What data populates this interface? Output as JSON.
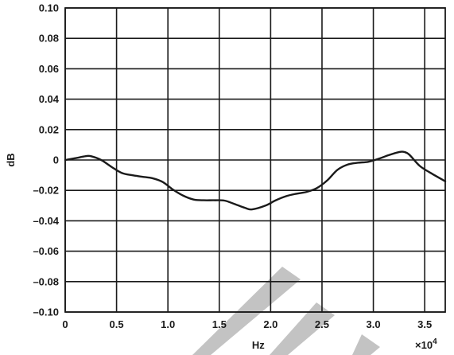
{
  "chart_data": {
    "type": "line",
    "title": "",
    "xlabel": "Hz",
    "ylabel": "dB",
    "x_multiplier_label": "×10",
    "x_multiplier_exponent": "4",
    "xlim": [
      0,
      37000
    ],
    "ylim": [
      -0.1,
      0.1
    ],
    "grid": true,
    "legend": "none",
    "x_ticks": [
      0,
      5000,
      10000,
      15000,
      20000,
      25000,
      30000,
      35000
    ],
    "x_tick_labels": [
      "0",
      "0.5",
      "1.0",
      "1.5",
      "2.0",
      "2.5",
      "3.0",
      "3.5"
    ],
    "y_ticks": [
      0.1,
      0.08,
      0.06,
      0.04,
      0.02,
      0,
      -0.02,
      -0.04,
      -0.06,
      -0.08,
      -0.1
    ],
    "y_tick_labels": [
      "0.10",
      "0.08",
      "0.06",
      "0.04",
      "0.02",
      "0",
      "–0.02",
      "–0.04",
      "–0.06",
      "–0.08",
      "–0.10"
    ],
    "series": [
      {
        "color": "#1a1a1a",
        "x": [
          0,
          1000,
          2000,
          2500,
          3500,
          4500,
          5500,
          6500,
          7500,
          8500,
          9500,
          10500,
          11500,
          12500,
          13500,
          14500,
          15500,
          16500,
          17500,
          18200,
          19500,
          20500,
          21500,
          22500,
          23500,
          24500,
          25500,
          26500,
          27500,
          28500,
          29500,
          30500,
          31500,
          32500,
          33000,
          33500,
          34500,
          35500,
          37000
        ],
        "y": [
          0,
          0.0012,
          0.0025,
          0.0025,
          0,
          -0.0045,
          -0.0085,
          -0.01,
          -0.011,
          -0.012,
          -0.0145,
          -0.0195,
          -0.0235,
          -0.026,
          -0.0265,
          -0.0265,
          -0.0267,
          -0.029,
          -0.0315,
          -0.0325,
          -0.03,
          -0.0265,
          -0.0238,
          -0.0222,
          -0.021,
          -0.0185,
          -0.0135,
          -0.0065,
          -0.003,
          -0.0018,
          -0.0012,
          0.0008,
          0.0032,
          0.0052,
          0.0053,
          0.0035,
          -0.0038,
          -0.0082,
          -0.014
        ]
      }
    ]
  }
}
